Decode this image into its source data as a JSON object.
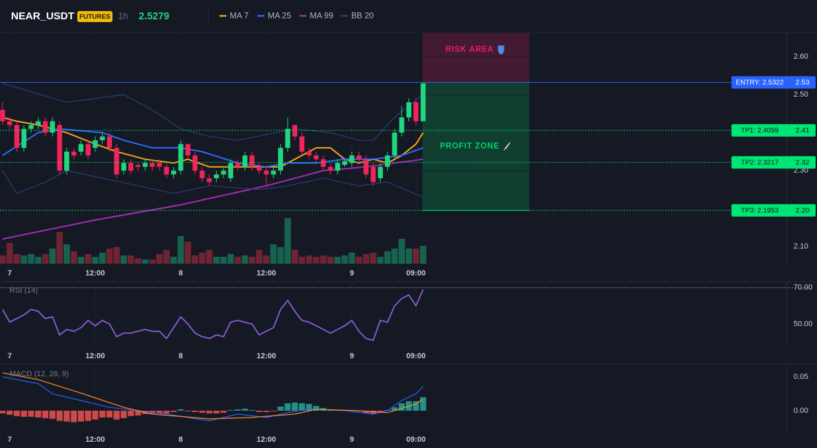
{
  "chart_data": [
    {
      "type": "candlestick",
      "symbol": "NEAR_USDT",
      "badge": "FUTURES",
      "interval": "1h",
      "last_price": 2.5279,
      "x": [
        -1,
        0,
        1,
        2,
        3,
        4,
        5,
        6,
        7,
        8,
        9,
        10,
        11,
        12,
        13,
        14,
        15,
        16,
        17,
        18,
        19,
        20,
        21,
        22,
        23,
        24,
        25,
        26,
        27,
        28,
        29,
        30,
        31,
        32,
        33,
        34,
        35,
        36,
        37,
        38,
        39,
        40,
        41,
        42,
        43,
        44,
        45,
        46,
        47,
        48,
        49,
        50,
        51,
        52,
        53,
        54,
        55,
        56,
        57,
        58
      ],
      "xlim": [
        -1.36,
        109
      ],
      "xticks": [
        {
          "value": 0,
          "label": "7"
        },
        {
          "value": 12,
          "label": "12:00"
        },
        {
          "value": 24,
          "label": "8"
        },
        {
          "value": 36,
          "label": "12:00"
        },
        {
          "value": 48,
          "label": "9"
        },
        {
          "value": 57,
          "label": "09:00"
        }
      ],
      "ylim": [
        2.055,
        2.662
      ],
      "yticks": [
        {
          "value": 2.1,
          "label": "2.10"
        },
        {
          "value": 2.3,
          "label": "2.30"
        },
        {
          "value": 2.5,
          "label": "2.50"
        },
        {
          "value": 2.6,
          "label": "2.60"
        }
      ],
      "open": [
        2.46,
        2.43,
        2.42,
        2.36,
        2.41,
        2.42,
        2.43,
        2.4,
        2.42,
        2.3,
        2.35,
        2.35,
        2.37,
        2.36,
        2.38,
        2.39,
        2.36,
        2.3,
        2.32,
        2.315,
        2.31,
        2.32,
        2.32,
        2.31,
        2.29,
        2.3,
        2.37,
        2.34,
        2.3,
        2.28,
        2.28,
        2.29,
        2.28,
        2.32,
        2.31,
        2.34,
        2.31,
        2.3,
        2.29,
        2.3,
        2.36,
        2.42,
        2.39,
        2.35,
        2.34,
        2.33,
        2.31,
        2.3,
        2.315,
        2.32,
        2.34,
        2.33,
        2.31,
        2.28,
        2.31,
        2.34,
        2.4,
        2.44,
        2.48,
        2.43
      ],
      "high": [
        2.48,
        2.44,
        2.43,
        2.42,
        2.43,
        2.44,
        2.44,
        2.44,
        2.43,
        2.36,
        2.36,
        2.38,
        2.38,
        2.39,
        2.4,
        2.4,
        2.37,
        2.33,
        2.33,
        2.32,
        2.33,
        2.33,
        2.33,
        2.32,
        2.31,
        2.38,
        2.37,
        2.35,
        2.31,
        2.29,
        2.3,
        2.31,
        2.33,
        2.33,
        2.35,
        2.35,
        2.32,
        2.31,
        2.31,
        2.37,
        2.44,
        2.42,
        2.4,
        2.36,
        2.35,
        2.34,
        2.32,
        2.33,
        2.33,
        2.35,
        2.35,
        2.34,
        2.32,
        2.32,
        2.35,
        2.41,
        2.47,
        2.49,
        2.49,
        2.53
      ],
      "low": [
        2.42,
        2.41,
        2.35,
        2.35,
        2.4,
        2.41,
        2.39,
        2.39,
        2.29,
        2.29,
        2.33,
        2.34,
        2.33,
        2.35,
        2.37,
        2.35,
        2.28,
        2.29,
        2.29,
        2.3,
        2.3,
        2.3,
        2.3,
        2.28,
        2.28,
        2.29,
        2.33,
        2.29,
        2.27,
        2.26,
        2.27,
        2.28,
        2.27,
        2.3,
        2.3,
        2.3,
        2.29,
        2.26,
        2.28,
        2.29,
        2.35,
        2.38,
        2.34,
        2.33,
        2.32,
        2.3,
        2.29,
        2.29,
        2.31,
        2.31,
        2.32,
        2.28,
        2.26,
        2.27,
        2.3,
        2.33,
        2.39,
        2.43,
        2.42,
        2.43
      ],
      "close": [
        2.43,
        2.42,
        2.36,
        2.41,
        2.42,
        2.43,
        2.4,
        2.43,
        2.3,
        2.35,
        2.34,
        2.37,
        2.34,
        2.38,
        2.39,
        2.36,
        2.29,
        2.32,
        2.3,
        2.31,
        2.32,
        2.31,
        2.31,
        2.29,
        2.3,
        2.37,
        2.34,
        2.3,
        2.28,
        2.27,
        2.29,
        2.3,
        2.32,
        2.31,
        2.34,
        2.31,
        2.3,
        2.29,
        2.3,
        2.36,
        2.41,
        2.39,
        2.35,
        2.34,
        2.33,
        2.31,
        2.3,
        2.32,
        2.325,
        2.34,
        2.33,
        2.29,
        2.27,
        2.31,
        2.34,
        2.4,
        2.44,
        2.48,
        2.43,
        2.53
      ],
      "up_color": "#22d67f",
      "down_color": "#f0245a",
      "volume": [
        12,
        30,
        14,
        12,
        14,
        10,
        14,
        22,
        46,
        28,
        18,
        10,
        14,
        10,
        16,
        22,
        24,
        12,
        12,
        8,
        6,
        6,
        14,
        20,
        10,
        40,
        32,
        12,
        16,
        20,
        10,
        10,
        14,
        10,
        12,
        10,
        20,
        12,
        28,
        24,
        66,
        20,
        10,
        12,
        10,
        12,
        10,
        10,
        12,
        16,
        10,
        14,
        16,
        10,
        18,
        22,
        36,
        22,
        22,
        26
      ],
      "volume_up_color": "#17634f",
      "volume_down_color": "#6e2433",
      "lines": [
        {
          "name": "MA 7",
          "color": "#f5a31b",
          "x": [
            -1,
            1,
            4,
            8,
            12,
            15,
            19,
            23,
            25,
            28,
            32,
            35,
            38,
            40,
            42,
            43,
            45,
            47,
            49,
            51,
            53,
            55,
            57,
            58
          ],
          "values": [
            2.44,
            2.43,
            2.42,
            2.4,
            2.37,
            2.35,
            2.33,
            2.32,
            2.33,
            2.31,
            2.31,
            2.31,
            2.31,
            2.33,
            2.35,
            2.36,
            2.36,
            2.33,
            2.32,
            2.33,
            2.32,
            2.34,
            2.37,
            2.4
          ]
        },
        {
          "name": "MA 25",
          "color": "#2f6bff",
          "x": [
            -1,
            4,
            7,
            13,
            16,
            20,
            24,
            27,
            32,
            36,
            39,
            43,
            47,
            51,
            55,
            58
          ],
          "values": [
            2.34,
            2.4,
            2.41,
            2.4,
            2.38,
            2.36,
            2.36,
            2.35,
            2.32,
            2.31,
            2.32,
            2.32,
            2.33,
            2.33,
            2.34,
            2.36
          ]
        },
        {
          "name": "MA 99",
          "color": "#a62bb8",
          "x": [
            -1,
            12,
            24,
            36,
            44,
            50,
            58
          ],
          "values": [
            2.12,
            2.17,
            2.21,
            2.26,
            2.3,
            2.31,
            2.33
          ]
        },
        {
          "name": "BB 20",
          "color": "#2b3f78",
          "x_upper": [
            -1,
            8,
            16,
            20,
            24,
            28,
            32,
            40,
            45,
            49,
            51,
            54,
            58
          ],
          "upper": [
            2.53,
            2.48,
            2.5,
            2.46,
            2.41,
            2.39,
            2.38,
            2.41,
            2.4,
            2.38,
            2.38,
            2.44,
            2.5
          ],
          "x_lower": [
            -1,
            1,
            5,
            8,
            13,
            18,
            23,
            28,
            35,
            39,
            44,
            49,
            53,
            58
          ],
          "lower": [
            2.3,
            2.24,
            2.27,
            2.3,
            2.28,
            2.26,
            2.24,
            2.26,
            2.25,
            2.26,
            2.28,
            2.26,
            2.27,
            2.23
          ]
        }
      ],
      "zones": [
        {
          "label": "RISK AREA",
          "x_range": [
            57.9,
            72.9
          ],
          "y_range": [
            2.5322,
            2.662
          ],
          "color": "#e91e63"
        },
        {
          "label": "PROFIT ZONE",
          "x_range": [
            57.9,
            72.9
          ],
          "y_range": [
            2.1953,
            2.5322
          ],
          "color": "#00d26a"
        }
      ],
      "levels": [
        {
          "label": "ENTRY: 2.5322",
          "value": 2.5322,
          "value_label": "2.53",
          "color": "#2962ff",
          "text_color": "#ffffff",
          "style": "solid"
        },
        {
          "label": "TP1: 2.4059",
          "value": 2.4059,
          "value_label": "2.41",
          "color": "#00e676",
          "text_color": "#0b1a10",
          "style": "dotted"
        },
        {
          "label": "TP2: 2.3217",
          "value": 2.3217,
          "value_label": "2.32",
          "color": "#00e676",
          "text_color": "#0b1a10",
          "style": "dotted"
        },
        {
          "label": "TP3: 2.1953",
          "value": 2.1953,
          "value_label": "2.20",
          "color": "#00e676",
          "text_color": "#0b1a10",
          "style": "dotted"
        }
      ]
    },
    {
      "type": "rsi",
      "title": "RSI (14)",
      "x": [
        -1,
        0,
        1,
        2,
        3,
        4,
        5,
        6,
        7,
        8,
        9,
        10,
        11,
        12,
        13,
        14,
        15,
        16,
        17,
        18,
        19,
        20,
        21,
        22,
        23,
        24,
        25,
        26,
        27,
        28,
        29,
        30,
        31,
        32,
        33,
        34,
        35,
        36,
        37,
        38,
        39,
        40,
        41,
        42,
        43,
        44,
        45,
        46,
        47,
        48,
        49,
        50,
        51,
        52,
        53,
        54,
        55,
        56,
        57,
        58
      ],
      "values": [
        58,
        51,
        53,
        55,
        58,
        57,
        53,
        54,
        44,
        47,
        46,
        48,
        52,
        49,
        52,
        50,
        43,
        45,
        45,
        46,
        47,
        46,
        46,
        42,
        48,
        54,
        50,
        45,
        43,
        42,
        44,
        43,
        51,
        52,
        51,
        50,
        44,
        46,
        48,
        58,
        63,
        57,
        52,
        51,
        49,
        47,
        45,
        47,
        49,
        52,
        46,
        42,
        41,
        52,
        51,
        60,
        64,
        66,
        60,
        69
      ],
      "color": "#8e5cd9",
      "reference": 70,
      "xlim": [
        -1.36,
        109
      ],
      "xticks": [
        {
          "value": 0,
          "label": "7"
        },
        {
          "value": 12,
          "label": "12:00"
        },
        {
          "value": 24,
          "label": "8"
        },
        {
          "value": 36,
          "label": "12:00"
        },
        {
          "value": 48,
          "label": "9"
        },
        {
          "value": 57,
          "label": "09:00"
        }
      ],
      "ylim": [
        37.6,
        73.3
      ],
      "yticks": [
        {
          "value": 50,
          "label": "50.00"
        },
        {
          "value": 70,
          "label": "70.00"
        }
      ]
    },
    {
      "type": "macd",
      "title": "MACD (12, 26, 9)",
      "x": [
        -1,
        0,
        1,
        2,
        3,
        4,
        5,
        6,
        7,
        8,
        9,
        10,
        11,
        12,
        13,
        14,
        15,
        16,
        17,
        18,
        19,
        20,
        21,
        22,
        23,
        24,
        25,
        26,
        27,
        28,
        29,
        30,
        31,
        32,
        33,
        34,
        35,
        36,
        37,
        38,
        39,
        40,
        41,
        42,
        43,
        44,
        45,
        46,
        47,
        48,
        49,
        50,
        51,
        52,
        53,
        54,
        55,
        56,
        57,
        58
      ],
      "histogram": [
        -0.004,
        -0.006,
        -0.008,
        -0.009,
        -0.009,
        -0.01,
        -0.011,
        -0.012,
        -0.015,
        -0.016,
        -0.017,
        -0.016,
        -0.015,
        -0.013,
        -0.01,
        -0.01,
        -0.013,
        -0.011,
        -0.008,
        -0.007,
        -0.005,
        -0.004,
        -0.004,
        -0.004,
        -0.002,
        0.002,
        -0.001,
        -0.002,
        -0.003,
        -0.004,
        -0.004,
        -0.003,
        0.001,
        0.002,
        0.003,
        0.001,
        -0.002,
        -0.002,
        -0.001,
        0.006,
        0.011,
        0.012,
        0.011,
        0.01,
        0.007,
        0.004,
        0.002,
        0.001,
        0.001,
        0.001,
        -0.001,
        -0.004,
        -0.005,
        -0.002,
        0.001,
        0.005,
        0.011,
        0.014,
        0.014,
        0.02
      ],
      "hist_up_color": "#26a69a",
      "hist_down_color": "#ef5350",
      "macd_line": {
        "color": "#2962ff",
        "x": [
          -1,
          4,
          6,
          10,
          14,
          18,
          22,
          28,
          32,
          36,
          39,
          42,
          47,
          51,
          53,
          55,
          57,
          58
        ],
        "values": [
          0.05,
          0.04,
          0.025,
          0.015,
          0.005,
          0,
          -0.005,
          -0.015,
          -0.005,
          -0.01,
          -0.003,
          0.003,
          0,
          -0.005,
          0,
          0.015,
          0.025,
          0.036
        ]
      },
      "signal_line": {
        "color": "#ff8a2a",
        "x": [
          -1,
          4,
          10,
          16,
          20,
          28,
          34,
          40,
          43,
          49,
          53,
          57,
          58
        ],
        "values": [
          0.056,
          0.046,
          0.026,
          0.005,
          -0.005,
          -0.012,
          -0.01,
          -0.005,
          0.002,
          0,
          -0.003,
          0.01,
          0.017
        ]
      },
      "xlim": [
        -1.36,
        109
      ],
      "xticks": [
        {
          "value": 0,
          "label": "7"
        },
        {
          "value": 12,
          "label": "12:00"
        },
        {
          "value": 24,
          "label": "8"
        },
        {
          "value": 36,
          "label": "12:00"
        },
        {
          "value": 48,
          "label": "9"
        },
        {
          "value": 57,
          "label": "09:00"
        }
      ],
      "ylim": [
        -0.0276,
        0.0663
      ],
      "yticks": [
        {
          "value": 0,
          "label": "0.00"
        },
        {
          "value": 0.05,
          "label": "0.05"
        }
      ]
    }
  ]
}
